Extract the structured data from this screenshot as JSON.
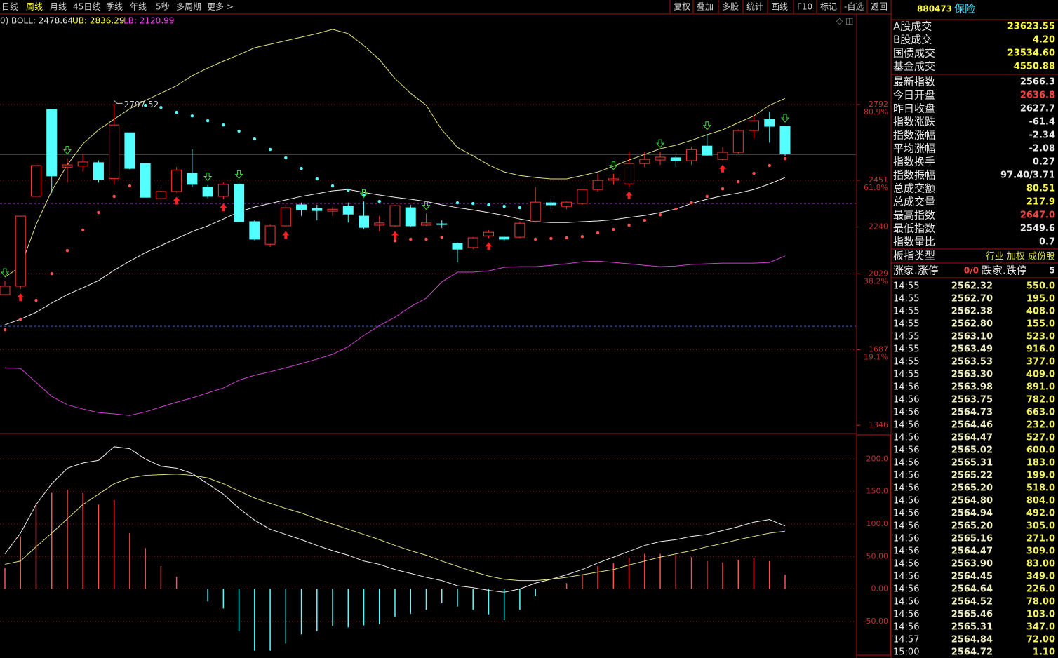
{
  "toolbar": {
    "left": [
      "日线",
      "周线",
      "月线",
      "45日线",
      "季线",
      "年线",
      "5秒",
      "多周期",
      "更多 >"
    ],
    "active": 1,
    "right": [
      "复权",
      "叠加",
      "多股",
      "统计",
      "画线",
      "F10",
      "标记",
      "-自选",
      "返回"
    ]
  },
  "readout": [
    "0)",
    "BOLL: 2478.64",
    "UB: 2836.29",
    "LB: 2120.99"
  ],
  "chart_data": [
    {
      "type": "candlestick",
      "open": [
        1935,
        1973,
        2378,
        2770,
        2510,
        2515,
        2530,
        2458,
        2665,
        2526,
        2368,
        2400,
        2482,
        2420,
        2378,
        2432,
        2264,
        2162,
        2245,
        2340,
        2324,
        2311,
        2334,
        2289,
        2248,
        2245,
        2327,
        2248,
        2254,
        2166,
        2147,
        2200,
        2194,
        2194,
        2266,
        2349,
        2333,
        2346,
        2409,
        2451,
        2434,
        2526,
        2542,
        2552,
        2539,
        2605,
        2545,
        2577,
        2675,
        2725,
        2694
      ],
      "high": [
        1998,
        2289,
        2530,
        2770,
        2550,
        2570,
        2540,
        2797.52,
        2665,
        2526,
        2420,
        2510,
        2590,
        2430,
        2440,
        2440,
        2270,
        2250,
        2340,
        2350,
        2340,
        2330,
        2350,
        2355,
        2290,
        2340,
        2340,
        2300,
        2270,
        2170,
        2195,
        2225,
        2200,
        2265,
        2420,
        2370,
        2355,
        2410,
        2480,
        2480,
        2580,
        2580,
        2580,
        2560,
        2600,
        2660,
        2600,
        2680,
        2740,
        2760,
        2694
      ],
      "low": [
        1935,
        1960,
        2370,
        2393,
        2440,
        2490,
        2440,
        2430,
        2500,
        2374,
        2340,
        2395,
        2420,
        2370,
        2365,
        2264,
        2180,
        2150,
        2240,
        2290,
        2270,
        2290,
        2260,
        2230,
        2220,
        2240,
        2240,
        2245,
        2235,
        2080,
        2140,
        2190,
        2175,
        2190,
        2260,
        2320,
        2320,
        2340,
        2400,
        2430,
        2420,
        2510,
        2520,
        2510,
        2520,
        2560,
        2540,
        2570,
        2640,
        2620,
        2560
      ],
      "close": [
        1973,
        2289,
        2517,
        2470,
        2520,
        2533,
        2455,
        2700,
        2504,
        2374,
        2400,
        2497,
        2432,
        2378,
        2432,
        2264,
        2185,
        2245,
        2327,
        2318,
        2314,
        2320,
        2298,
        2238,
        2258,
        2336,
        2245,
        2258,
        2251,
        2140,
        2191,
        2216,
        2185,
        2257,
        2352,
        2340,
        2352,
        2409,
        2450,
        2457,
        2526,
        2545,
        2555,
        2539,
        2589,
        2564,
        2577,
        2675,
        2719,
        2694,
        2570
      ],
      "boll_upper": [
        2014,
        2061,
        2251,
        2403,
        2520,
        2615,
        2678,
        2726,
        2773,
        2811,
        2843,
        2877,
        2922,
        2957,
        2988,
        3017,
        3048,
        3064,
        3080,
        3096,
        3112,
        3131,
        3112,
        3058,
        2995,
        2909,
        2843,
        2789,
        2678,
        2599,
        2561,
        2520,
        2488,
        2472,
        2463,
        2457,
        2457,
        2472,
        2488,
        2514,
        2542,
        2567,
        2593,
        2609,
        2631,
        2656,
        2678,
        2710,
        2741,
        2789,
        2820
      ],
      "boll_mid": [
        1799,
        1824,
        1855,
        1897,
        1935,
        1966,
        1998,
        2045,
        2086,
        2124,
        2156,
        2188,
        2219,
        2245,
        2276,
        2308,
        2330,
        2346,
        2362,
        2378,
        2390,
        2403,
        2409,
        2396,
        2384,
        2374,
        2365,
        2355,
        2340,
        2327,
        2317,
        2305,
        2292,
        2276,
        2264,
        2260,
        2260,
        2264,
        2267,
        2273,
        2283,
        2292,
        2305,
        2321,
        2346,
        2365,
        2381,
        2393,
        2409,
        2434,
        2463
      ],
      "boll_lower": [
        1605,
        1602,
        1539,
        1476,
        1438,
        1419,
        1403,
        1397,
        1390,
        1406,
        1428,
        1450,
        1469,
        1492,
        1514,
        1549,
        1571,
        1587,
        1605,
        1624,
        1644,
        1666,
        1700,
        1751,
        1795,
        1833,
        1881,
        1919,
        1992,
        2036,
        2036,
        2042,
        2058,
        2061,
        2061,
        2067,
        2074,
        2083,
        2086,
        2080,
        2074,
        2067,
        2061,
        2064,
        2071,
        2074,
        2077,
        2077,
        2077,
        2080,
        2109
      ],
      "sar_below": [
        1776,
        1824,
        1909,
        2029,
        2134,
        2226,
        2305,
        2378,
        2425,
        null,
        null,
        null,
        null,
        null,
        null,
        null,
        null,
        null,
        null,
        null,
        null,
        null,
        null,
        null,
        null,
        2178,
        2185,
        2185,
        2194,
        null,
        null,
        null,
        null,
        null,
        2185,
        2188,
        2191,
        2197,
        2213,
        2229,
        2248,
        2270,
        2295,
        2321,
        2349,
        2378,
        2412,
        2444,
        2482,
        2517,
        2548
      ],
      "sar_above": [
        null,
        null,
        null,
        null,
        null,
        null,
        null,
        null,
        null,
        2789,
        2779,
        2757,
        2741,
        2719,
        2700,
        2672,
        2637,
        2590,
        2552,
        2504,
        2457,
        2425,
        2406,
        2384,
        2355,
        null,
        null,
        null,
        null,
        2349,
        2346,
        2340,
        2333,
        2327,
        null,
        null,
        null,
        null,
        null,
        null,
        null,
        null,
        null,
        null,
        null,
        null,
        null,
        null,
        null,
        null,
        null
      ],
      "buy_signals": [
        1,
        11,
        14,
        18,
        25,
        31,
        40,
        46
      ],
      "sell_signals": [
        0,
        4,
        13,
        15,
        23,
        27,
        39,
        42,
        45,
        50
      ],
      "max_high": 2797.52,
      "ylim": [
        1318,
        3194
      ],
      "yticks": [
        2792,
        2451,
        2240,
        2029,
        1687,
        1346
      ],
      "ytick_pct": [
        "80.9%",
        "61.8%",
        null,
        "38.2%",
        "19.1%",
        null
      ],
      "ref_lines": [
        {
          "value": 2346,
          "color": "#a040c0"
        },
        {
          "value": 1792,
          "color": "#4060c0"
        },
        {
          "value": 2567,
          "color": "#505050"
        }
      ]
    },
    {
      "type": "macd",
      "hist": [
        32,
        81,
        132,
        148,
        153,
        148,
        130,
        137,
        86,
        63,
        35,
        19,
        0,
        -19,
        -30,
        -65,
        -95,
        -95,
        -84,
        -70,
        -65,
        -57,
        -59,
        -56,
        -54,
        -43,
        -38,
        -32,
        -22,
        -27,
        -32,
        -39,
        -48,
        -32,
        -11,
        0,
        9,
        22,
        35,
        40,
        48,
        54,
        54,
        52,
        49,
        43,
        41,
        45,
        48,
        43,
        22
      ],
      "dif": [
        54,
        86,
        130,
        162,
        186,
        194,
        198,
        219,
        216,
        200,
        189,
        186,
        178,
        162,
        146,
        124,
        106,
        92,
        84,
        76,
        67,
        59,
        52,
        43,
        38,
        30,
        24,
        18,
        13,
        5,
        2,
        -2,
        -5,
        0,
        9,
        15,
        22,
        30,
        40,
        49,
        58,
        67,
        73,
        76,
        81,
        84,
        90,
        96,
        103,
        107,
        97
      ],
      "dea": [
        38,
        43,
        65,
        86,
        108,
        130,
        146,
        162,
        171,
        175,
        176,
        177,
        175,
        171,
        162,
        151,
        140,
        132,
        124,
        117,
        108,
        100,
        92,
        84,
        76,
        67,
        59,
        52,
        43,
        35,
        27,
        20,
        15,
        13,
        13,
        15,
        18,
        22,
        26,
        30,
        37,
        43,
        49,
        54,
        59,
        65,
        70,
        76,
        81,
        86,
        89
      ],
      "ylim": [
        -103,
        235
      ],
      "yticks": [
        {
          "value": 200,
          "label": "200.0"
        },
        {
          "value": 150,
          "label": "150.0"
        },
        {
          "value": 100,
          "label": "100.0"
        },
        {
          "value": 50,
          "label": "50.00"
        },
        {
          "value": 0,
          "label": "0.00"
        },
        {
          "value": -50,
          "label": "-50.00"
        }
      ]
    }
  ],
  "quote": {
    "code": "880473",
    "name": "保险",
    "stats": [
      {
        "label": "A股成交",
        "value": "23623.55",
        "color": "#ffff40"
      },
      {
        "label": "B股成交",
        "value": "4.20",
        "color": "#ffff40"
      },
      {
        "label": "国债成交",
        "value": "23534.60",
        "color": "#ffff40"
      },
      {
        "label": "基金成交",
        "value": "4550.88",
        "color": "#ffff40"
      },
      {
        "label": "最新指数",
        "value": "2566.3",
        "color": "#e8e8e8"
      },
      {
        "label": "今日开盘",
        "value": "2636.8",
        "color": "#ff4040"
      },
      {
        "label": "昨日收盘",
        "value": "2627.7",
        "color": "#e8e8e8"
      },
      {
        "label": "指数涨跌",
        "value": "-61.4",
        "color": "#e8e8e8"
      },
      {
        "label": "指数涨幅",
        "value": "-2.34",
        "color": "#e8e8e8"
      },
      {
        "label": "平均涨幅",
        "value": "-2.08",
        "color": "#e8e8e8"
      },
      {
        "label": "指数换手",
        "value": "0.27",
        "color": "#e8e8e8"
      },
      {
        "label": "指数振幅",
        "value": "97.40/3.71",
        "color": "#e8e8e8"
      },
      {
        "label": "总成交额",
        "value": "80.51",
        "color": "#ffff40"
      },
      {
        "label": "总成交量",
        "value": "217.9",
        "color": "#ffff40"
      },
      {
        "label": "最高指数",
        "value": "2647.0",
        "color": "#ff4040"
      },
      {
        "label": "最低指数",
        "value": "2549.6",
        "color": "#e8e8e8"
      },
      {
        "label": "指数量比",
        "value": "0.7",
        "color": "#e8e8e8"
      }
    ],
    "type_row": {
      "label": "板指类型",
      "value": "行业 加权 成份股"
    },
    "breadth": {
      "up_label": "涨家.涨停",
      "up_value": "0/0",
      "down_label": "跌家.跌停",
      "down_value": "5"
    },
    "ticks": [
      {
        "time": "14:55",
        "price": "2562.32",
        "volume": "550.0"
      },
      {
        "time": "14:55",
        "price": "2562.70",
        "volume": "195.0"
      },
      {
        "time": "14:55",
        "price": "2562.38",
        "volume": "408.0"
      },
      {
        "time": "14:55",
        "price": "2562.80",
        "volume": "155.0"
      },
      {
        "time": "14:55",
        "price": "2563.10",
        "volume": "523.0"
      },
      {
        "time": "14:55",
        "price": "2563.49",
        "volume": "916.0"
      },
      {
        "time": "14:55",
        "price": "2563.53",
        "volume": "377.0"
      },
      {
        "time": "14:55",
        "price": "2563.30",
        "volume": "409.0"
      },
      {
        "time": "14:56",
        "price": "2563.98",
        "volume": "891.0"
      },
      {
        "time": "14:56",
        "price": "2563.75",
        "volume": "782.0"
      },
      {
        "time": "14:56",
        "price": "2564.73",
        "volume": "663.0"
      },
      {
        "time": "14:56",
        "price": "2564.46",
        "volume": "232.0"
      },
      {
        "time": "14:56",
        "price": "2564.47",
        "volume": "527.0"
      },
      {
        "time": "14:56",
        "price": "2565.02",
        "volume": "600.0"
      },
      {
        "time": "14:56",
        "price": "2565.31",
        "volume": "183.0"
      },
      {
        "time": "14:56",
        "price": "2565.22",
        "volume": "199.0"
      },
      {
        "time": "14:56",
        "price": "2565.20",
        "volume": "518.0"
      },
      {
        "time": "14:56",
        "price": "2564.80",
        "volume": "804.0"
      },
      {
        "time": "14:56",
        "price": "2564.94",
        "volume": "492.0"
      },
      {
        "time": "14:56",
        "price": "2565.20",
        "volume": "305.0"
      },
      {
        "time": "14:56",
        "price": "2565.16",
        "volume": "271.0"
      },
      {
        "time": "14:56",
        "price": "2564.47",
        "volume": "309.0"
      },
      {
        "time": "14:56",
        "price": "2563.90",
        "volume": "83.00"
      },
      {
        "time": "14:56",
        "price": "2564.45",
        "volume": "349.0"
      },
      {
        "time": "14:56",
        "price": "2564.64",
        "volume": "226.0"
      },
      {
        "time": "14:56",
        "price": "2564.52",
        "volume": "78.00"
      },
      {
        "time": "14:56",
        "price": "2565.46",
        "volume": "103.0"
      },
      {
        "time": "14:56",
        "price": "2565.31",
        "volume": "347.0"
      },
      {
        "time": "14:57",
        "price": "2564.84",
        "volume": "72.00"
      },
      {
        "time": "15:00",
        "price": "2564.72",
        "volume": "1.10"
      }
    ]
  }
}
